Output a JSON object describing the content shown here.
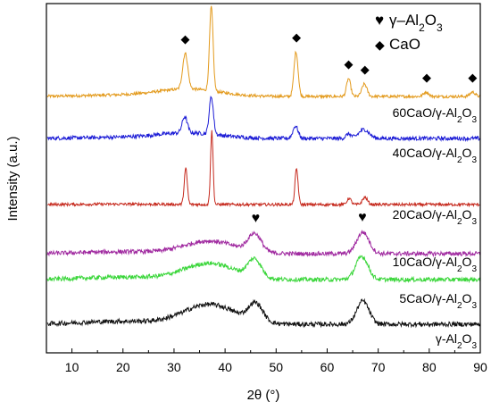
{
  "chart_data": {
    "type": "line",
    "xlabel": "2θ (°)",
    "ylabel": "Intensity (a.u.)",
    "xlim": [
      5,
      90
    ],
    "xticks": [
      10,
      20,
      30,
      40,
      50,
      60,
      70,
      80,
      90
    ],
    "y_tick_labels": false,
    "grid": false,
    "legend_position": "top-right",
    "legend": [
      {
        "symbol": "heart",
        "glyph": "♥",
        "label": "γ–Al",
        "sub1": "2",
        "mid": "O",
        "sub2": "3"
      },
      {
        "symbol": "diamond",
        "glyph": "◆",
        "label": "CaO"
      }
    ],
    "series": [
      {
        "name": "60CaO/γ-Al2O3",
        "label_main": "60CaO/γ-Al",
        "sub1": "2",
        "mid": "O",
        "sub2": "3",
        "color": "#e39a1c",
        "baseline": 108,
        "noise": 1.6,
        "hump": 10,
        "peaks": [
          [
            32.2,
            40,
            0.5
          ],
          [
            37.3,
            94,
            0.35
          ],
          [
            53.9,
            50,
            0.4
          ],
          [
            64.2,
            20,
            0.4
          ],
          [
            67.3,
            14,
            0.5
          ],
          [
            79.4,
            5,
            0.5
          ],
          [
            88.5,
            5,
            0.5
          ]
        ],
        "broad": [
          [
            33,
            8,
            6
          ]
        ],
        "markers": [
          {
            "symbol": "diamond",
            "x": 32.2
          },
          {
            "symbol": "diamond",
            "x": 37.3
          },
          {
            "symbol": "diamond",
            "x": 54.0
          },
          {
            "symbol": "diamond",
            "x": 64.2
          },
          {
            "symbol": "diamond",
            "x": 67.4
          },
          {
            "symbol": "diamond",
            "x": 79.5
          },
          {
            "symbol": "diamond",
            "x": 88.5
          }
        ]
      },
      {
        "name": "40CaO/γ-Al2O3",
        "label_main": "40CaO/γ-Al",
        "sub1": "2",
        "mid": "O",
        "sub2": "3",
        "color": "#1c1cd6",
        "baseline": 155,
        "noise": 2.2,
        "hump": 8,
        "peaks": [
          [
            32.1,
            18,
            0.5
          ],
          [
            37.3,
            42,
            0.4
          ],
          [
            53.8,
            14,
            0.5
          ],
          [
            64.2,
            5,
            0.5
          ],
          [
            67.2,
            10,
            1.0
          ]
        ],
        "broad": [
          [
            33,
            6,
            6
          ]
        ],
        "markers": []
      },
      {
        "name": "20CaO/γ-Al2O3",
        "label_main": "20CaO/γ-Al",
        "sub1": "2",
        "mid": "O",
        "sub2": "3",
        "color": "#c62a1e",
        "baseline": 229,
        "noise": 1.6,
        "hump": 3,
        "peaks": [
          [
            32.3,
            40,
            0.3
          ],
          [
            37.4,
            82,
            0.25
          ],
          [
            54.0,
            40,
            0.3
          ],
          [
            64.3,
            7,
            0.4
          ],
          [
            67.4,
            8,
            0.5
          ]
        ],
        "broad": [],
        "markers": []
      },
      {
        "name": "10CaO/γ-Al2O3",
        "label_main": "10CaO/γ-Al",
        "sub1": "2",
        "mid": "O",
        "sub2": "3",
        "color": "#a02aa0",
        "baseline": 284,
        "noise": 2.4,
        "hump": 14,
        "peaks": [
          [
            45.8,
            20,
            1.3
          ],
          [
            67.0,
            24,
            1.2
          ]
        ],
        "broad": [
          [
            37,
            14,
            5
          ]
        ],
        "markers": [
          {
            "symbol": "heart",
            "x": 46.0
          },
          {
            "symbol": "heart",
            "x": 66.9
          }
        ]
      },
      {
        "name": "5CaO/γ-Al2O3",
        "label_main": "5CaO/γ-Al",
        "sub1": "2",
        "mid": "O",
        "sub2": "3",
        "color": "#3ad63a",
        "baseline": 313,
        "noise": 2.4,
        "hump": 18,
        "peaks": [
          [
            45.8,
            20,
            1.3
          ],
          [
            66.8,
            26,
            1.2
          ]
        ],
        "broad": [
          [
            37,
            18,
            5
          ]
        ],
        "markers": []
      },
      {
        "name": "γ-Al2O3",
        "label_main": "γ-Al",
        "sub1": "2",
        "mid": "O",
        "sub2": "3",
        "color": "#111111",
        "baseline": 363,
        "noise": 2.6,
        "hump": 22,
        "peaks": [
          [
            46.0,
            20,
            1.4
          ],
          [
            67.0,
            26,
            1.2
          ]
        ],
        "broad": [
          [
            37,
            22,
            5
          ]
        ],
        "markers": []
      }
    ]
  }
}
